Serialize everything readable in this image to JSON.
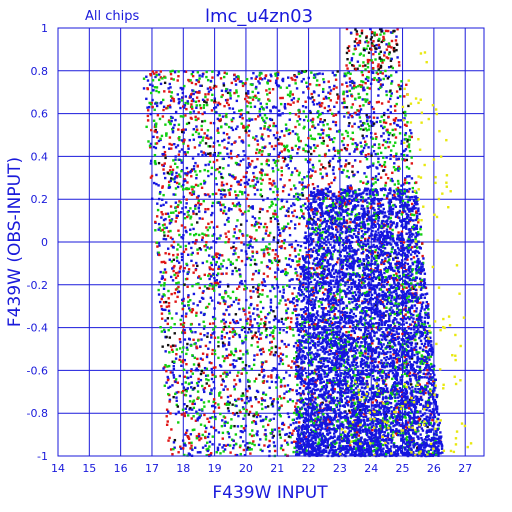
{
  "chart_data": {
    "type": "scatter",
    "title": "lmc_u4zn03",
    "subtitle": "All chips",
    "xlabel": "F439W INPUT",
    "ylabel": "F439W (OBS-INPUT)",
    "xlim": [
      14,
      27.6
    ],
    "ylim": [
      -1,
      1
    ],
    "x_ticks": [
      "14",
      "15",
      "16",
      "17",
      "18",
      "19",
      "20",
      "21",
      "22",
      "23",
      "24",
      "25",
      "26",
      "27"
    ],
    "y_ticks": [
      "-1",
      "-0.8",
      "-0.6",
      "-0.4",
      "-0.2",
      "0",
      "0.2",
      "0.4",
      "0.6",
      "0.8",
      "1"
    ],
    "grid": true,
    "colors": {
      "axis": "#1a1adb",
      "grid": "#1a1adb",
      "series": [
        "#1515e0",
        "#e01515",
        "#10d010",
        "#101010",
        "#e8e810"
      ]
    },
    "series": [
      {
        "color": "#1515e0",
        "x_range": [
          16.7,
          26.3
        ],
        "y_range": [
          -1,
          0.8
        ],
        "density": "dense, concentrated at x 21.5-26, y < 0"
      },
      {
        "color": "#e01515",
        "x_range": [
          16.7,
          25.5
        ],
        "y_range": [
          -1,
          0.95
        ]
      },
      {
        "color": "#10d010",
        "x_range": [
          16.7,
          25.8
        ],
        "y_range": [
          -1,
          0.95
        ]
      },
      {
        "color": "#101010",
        "x_range": [
          16.7,
          25.0
        ],
        "y_range": [
          -1,
          1
        ]
      },
      {
        "color": "#e8e810",
        "x_range": [
          22.0,
          27.0
        ],
        "y_range": [
          -1,
          0.9
        ],
        "density": "sparse, right edge"
      }
    ]
  }
}
